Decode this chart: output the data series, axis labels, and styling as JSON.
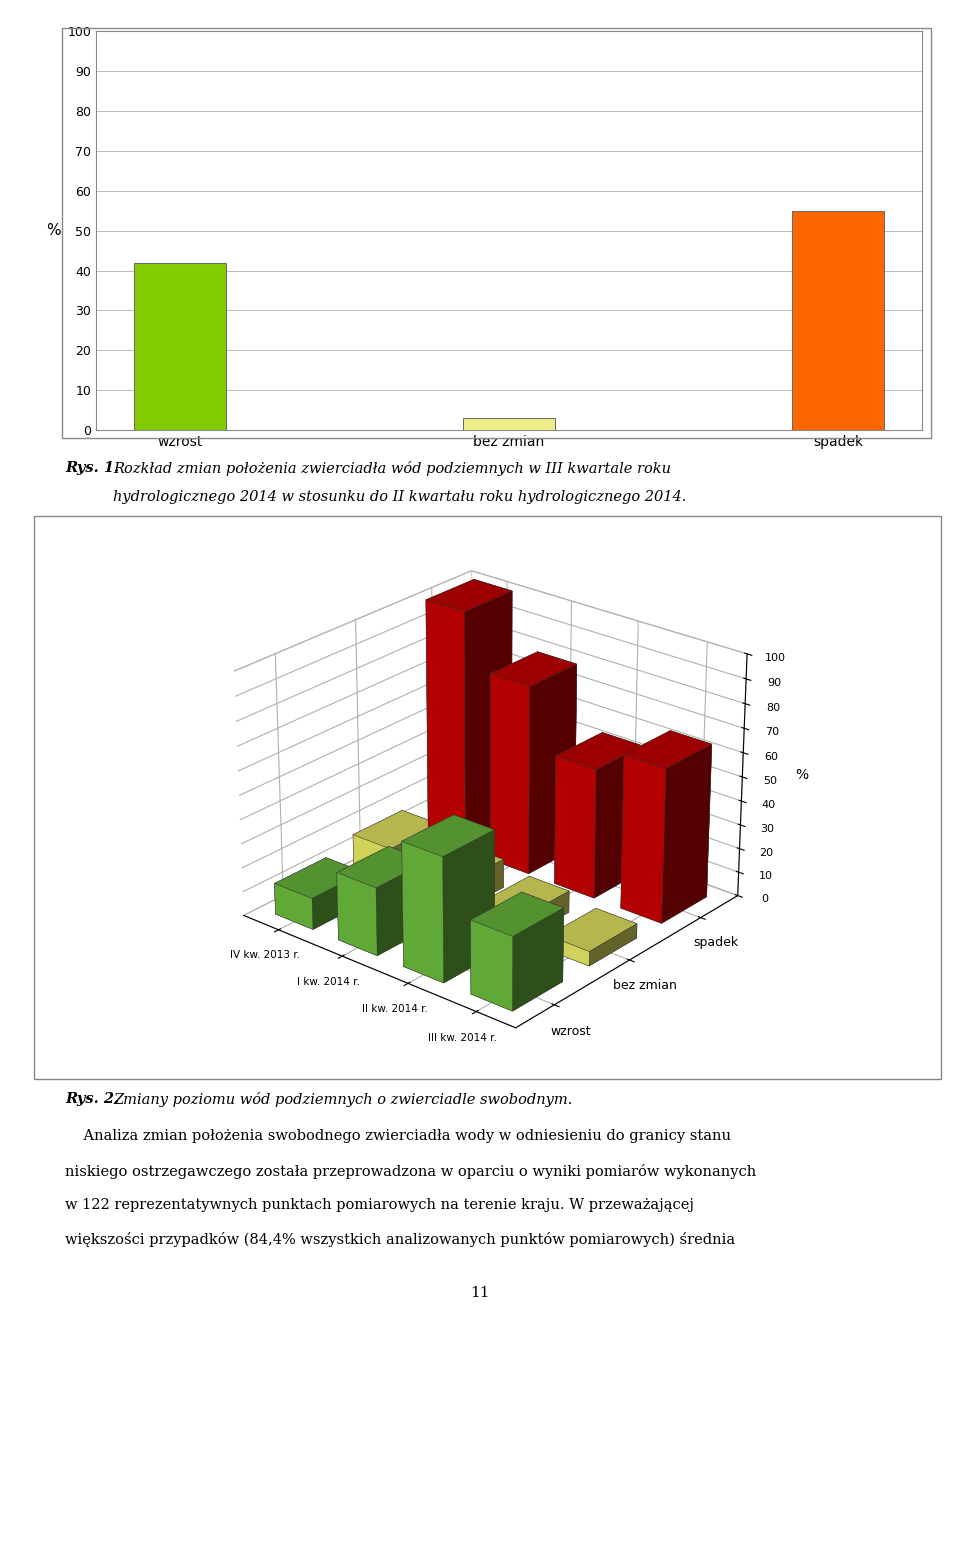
{
  "chart1": {
    "categories": [
      "wzrost",
      "bez zmian",
      "spadek"
    ],
    "values": [
      42,
      3,
      55
    ],
    "colors": [
      "#80CC00",
      "#EEEE88",
      "#FF6600"
    ],
    "ylabel": "%",
    "ylim": [
      0,
      100
    ],
    "yticks": [
      0,
      10,
      20,
      30,
      40,
      50,
      60,
      70,
      80,
      90,
      100
    ]
  },
  "caption1": "Rys. 1. Rozkład zmian położenia zwierciadła wód podziemnych w III kwartale roku hydrologicznego 2014 w stosunku do II kwartału roku hydrologicznego 2014.",
  "chart2": {
    "quarters": [
      "IV kw. 2013 r.",
      "I kw. 2014 r.",
      "II kw. 2014 r.",
      "III kw. 2014 r."
    ],
    "wzrost": [
      13,
      28,
      51,
      30
    ],
    "bez_zmian": [
      17,
      12,
      9,
      6
    ],
    "spadek_vals": [
      0,
      101,
      79,
      54,
      64
    ],
    "spadek": [
      101,
      79,
      54,
      64
    ],
    "colors_wzrost": "#6DBF3E",
    "colors_bez": "#EEEE66",
    "colors_spadek": "#CC0000",
    "yticks": [
      0,
      10,
      20,
      30,
      40,
      50,
      60,
      70,
      80,
      90,
      100
    ]
  },
  "caption2": "Rys. 2. Zmiany poziomu wód podziemnych o zwierciadle swobodnym.",
  "body_text": "Analiza zmian położenia swobodnego zwierciadła wody w odniesieniu do granicy stanu niskiego ostrzegawczego została przeprowadzona w oparciu o wyniki pomiarów wykonanych w 122 reprezentatywnych punktach pomiarowych na terenie kraju. W przeważającej większości przypadków (84,4% wszystkich analizowanych punktów pomiarowych) średnia",
  "page_num": "11",
  "bg": "#FFFFFF",
  "border": "#888888",
  "grid": "#BBBBBB"
}
